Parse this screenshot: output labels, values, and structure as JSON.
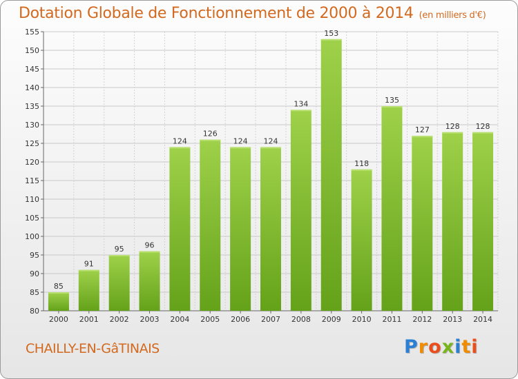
{
  "chart_data": {
    "type": "bar",
    "title": "Dotation Globale de Fonctionnement de 2000 à 2014",
    "subtitle": "(en milliers d'€)",
    "categories": [
      "2000",
      "2001",
      "2002",
      "2003",
      "2004",
      "2005",
      "2006",
      "2007",
      "2008",
      "2009",
      "2010",
      "2011",
      "2012",
      "2013",
      "2014"
    ],
    "values": [
      85,
      91,
      95,
      96,
      124,
      126,
      124,
      124,
      134,
      153,
      118,
      135,
      127,
      128,
      128
    ],
    "ylim": [
      80,
      155
    ],
    "yticks": [
      80,
      85,
      90,
      95,
      100,
      105,
      110,
      115,
      120,
      125,
      130,
      135,
      140,
      145,
      150,
      155
    ],
    "grid": true,
    "bar_color": "#7db52e",
    "bar_highlight_color": "#9fd14a"
  },
  "footer": {
    "town": "CHAILLY-EN-GâTINAIS",
    "logo_letters": [
      "P",
      "r",
      "o",
      "x",
      "i",
      "t",
      "i"
    ],
    "logo_colors": [
      "#2b7fd4",
      "#f08c00",
      "#e94e1b",
      "#7ab51d",
      "#2b7fd4",
      "#f08c00",
      "#e94e1b"
    ]
  }
}
